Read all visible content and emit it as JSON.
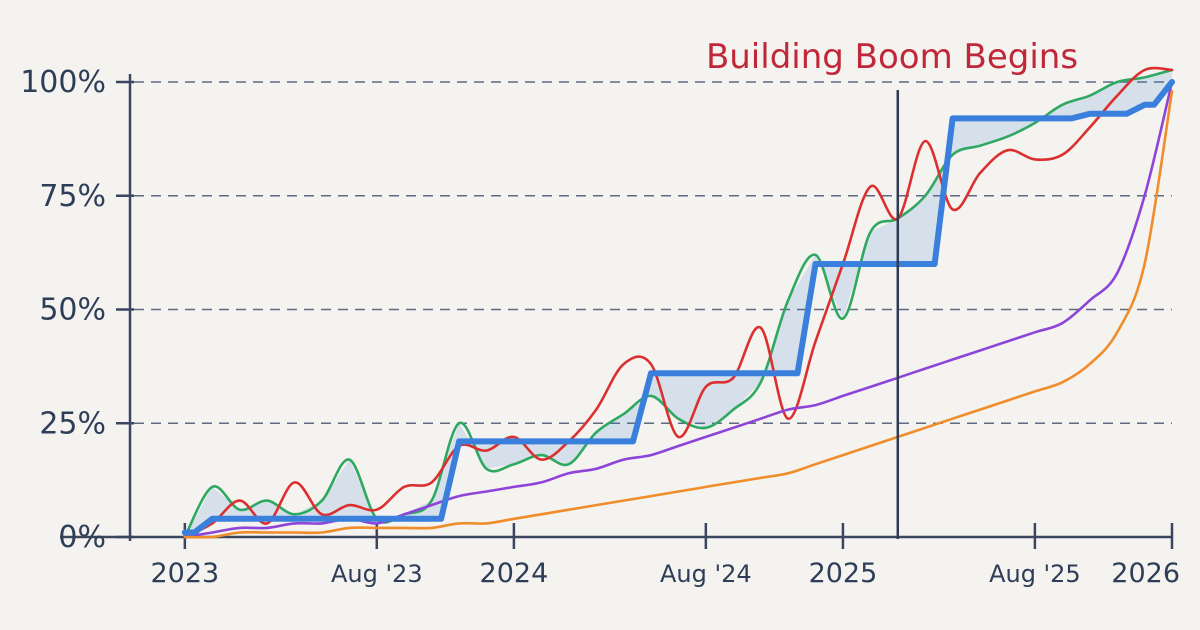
{
  "chart_data": {
    "type": "line",
    "title": "",
    "xlabel": "",
    "ylabel": "",
    "x_ticks": [
      "2023",
      "Aug '23",
      "2024",
      "Aug '24",
      "2025",
      "Aug '25",
      "2026"
    ],
    "y_ticks": [
      "0%",
      "25%",
      "50%",
      "75%",
      "100%"
    ],
    "ylim": [
      0,
      100
    ],
    "xlim": [
      "2022-11",
      "2026-01"
    ],
    "grid": true,
    "annotation": {
      "text": "Building Boom Begins",
      "x": "2025-03",
      "color": "#c0283a"
    },
    "series": [
      {
        "color": "#3a7fdc",
        "style": "step",
        "fill_to_next": true,
        "x": [
          "2023-01",
          "2023-02",
          "2023-03",
          "2023-04",
          "2023-05",
          "2023-06",
          "2023-07",
          "2023-08",
          "2023-09",
          "2023-10",
          "2023-11",
          "2023-12",
          "2024-01",
          "2024-02",
          "2024-03",
          "2024-04",
          "2024-05",
          "2024-06",
          "2024-07",
          "2024-08",
          "2024-09",
          "2024-10",
          "2024-11",
          "2024-12",
          "2025-01",
          "2025-02",
          "2025-03",
          "2025-04",
          "2025-05",
          "2025-06",
          "2025-07",
          "2025-08",
          "2025-09",
          "2025-10",
          "2025-11",
          "2025-12",
          "2026-01"
        ],
        "values": [
          1,
          4,
          4,
          4,
          4,
          4,
          4,
          4,
          4,
          4,
          21,
          21,
          21,
          21,
          21,
          21,
          21,
          36,
          36,
          36,
          36,
          36,
          36,
          60,
          60,
          60,
          60,
          60,
          92,
          92,
          92,
          92,
          92,
          93,
          93,
          95,
          100
        ]
      },
      {
        "color": "#2fa862",
        "x": [
          "2023-01",
          "2023-02",
          "2023-03",
          "2023-04",
          "2023-05",
          "2023-06",
          "2023-07",
          "2023-08",
          "2023-09",
          "2023-10",
          "2023-11",
          "2023-12",
          "2024-01",
          "2024-02",
          "2024-03",
          "2024-04",
          "2024-05",
          "2024-06",
          "2024-07",
          "2024-08",
          "2024-09",
          "2024-10",
          "2024-11",
          "2024-12",
          "2025-01",
          "2025-02",
          "2025-03",
          "2025-04",
          "2025-05",
          "2025-06",
          "2025-07",
          "2025-08",
          "2025-09",
          "2025-10",
          "2025-11",
          "2025-12",
          "2026-01"
        ],
        "values": [
          0,
          11,
          6,
          8,
          5,
          8,
          17,
          4,
          5,
          8,
          25,
          15,
          16,
          18,
          16,
          23,
          27,
          31,
          26,
          24,
          28,
          34,
          52,
          62,
          48,
          67,
          70,
          75,
          84,
          86,
          88,
          91,
          95,
          97,
          100,
          101,
          104
        ]
      },
      {
        "color": "#dc2f2f",
        "x": [
          "2023-01",
          "2023-02",
          "2023-03",
          "2023-04",
          "2023-05",
          "2023-06",
          "2023-07",
          "2023-08",
          "2023-09",
          "2023-10",
          "2023-11",
          "2023-12",
          "2024-01",
          "2024-02",
          "2024-03",
          "2024-04",
          "2024-05",
          "2024-06",
          "2024-07",
          "2024-08",
          "2024-09",
          "2024-10",
          "2024-11",
          "2024-12",
          "2025-01",
          "2025-02",
          "2025-03",
          "2025-04",
          "2025-05",
          "2025-06",
          "2025-07",
          "2025-08",
          "2025-09",
          "2025-10",
          "2025-11",
          "2025-12",
          "2026-01"
        ],
        "values": [
          0,
          3,
          8,
          3,
          12,
          5,
          7,
          6,
          11,
          12,
          20,
          19,
          22,
          17,
          21,
          28,
          38,
          38,
          22,
          33,
          35,
          46,
          26,
          43,
          60,
          77,
          70,
          87,
          72,
          80,
          85,
          83,
          84,
          90,
          97,
          103,
          112
        ]
      },
      {
        "color": "#8e44d8",
        "x": [
          "2023-01",
          "2023-02",
          "2023-03",
          "2023-04",
          "2023-05",
          "2023-06",
          "2023-07",
          "2023-08",
          "2023-09",
          "2023-10",
          "2023-11",
          "2023-12",
          "2024-01",
          "2024-02",
          "2024-03",
          "2024-04",
          "2024-05",
          "2024-06",
          "2024-07",
          "2024-08",
          "2024-09",
          "2024-10",
          "2024-11",
          "2024-12",
          "2025-01",
          "2025-02",
          "2025-03",
          "2025-04",
          "2025-05",
          "2025-06",
          "2025-07",
          "2025-08",
          "2025-09",
          "2025-10",
          "2025-11",
          "2025-12",
          "2026-01"
        ],
        "values": [
          0,
          1,
          2,
          2,
          3,
          3,
          4,
          3,
          5,
          7,
          9,
          10,
          11,
          12,
          14,
          15,
          17,
          18,
          20,
          22,
          24,
          26,
          28,
          29,
          31,
          33,
          35,
          37,
          39,
          41,
          43,
          45,
          47,
          52,
          58,
          75,
          100
        ]
      },
      {
        "color": "#f08c2a",
        "x": [
          "2023-01",
          "2023-02",
          "2023-03",
          "2023-04",
          "2023-05",
          "2023-06",
          "2023-07",
          "2023-08",
          "2023-09",
          "2023-10",
          "2023-11",
          "2023-12",
          "2024-01",
          "2024-02",
          "2024-03",
          "2024-04",
          "2024-05",
          "2024-06",
          "2024-07",
          "2024-08",
          "2024-09",
          "2024-10",
          "2024-11",
          "2024-12",
          "2025-01",
          "2025-02",
          "2025-03",
          "2025-04",
          "2025-05",
          "2025-06",
          "2025-07",
          "2025-08",
          "2025-09",
          "2025-10",
          "2025-11",
          "2025-12",
          "2026-01"
        ],
        "values": [
          0,
          0,
          1,
          1,
          1,
          1,
          2,
          2,
          2,
          2,
          3,
          3,
          4,
          5,
          6,
          7,
          8,
          9,
          10,
          11,
          12,
          13,
          14,
          16,
          18,
          20,
          22,
          24,
          26,
          28,
          30,
          32,
          34,
          38,
          45,
          60,
          98
        ]
      }
    ]
  }
}
